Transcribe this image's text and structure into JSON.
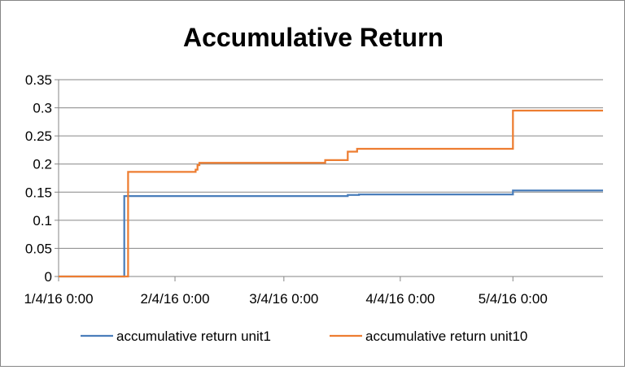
{
  "chart_data": {
    "type": "line",
    "title": "Accumulative Return",
    "xlabel": "",
    "ylabel": "",
    "x_ticks": [
      "1/4/16 0:00",
      "2/4/16 0:00",
      "3/4/16 0:00",
      "4/4/16 0:00",
      "5/4/16 0:00"
    ],
    "x_tick_days": [
      0,
      31,
      60,
      91,
      121
    ],
    "xlim": [
      0,
      145
    ],
    "y_ticks": [
      "0",
      "0.05",
      "0.1",
      "0.15",
      "0.2",
      "0.25",
      "0.3",
      "0.35"
    ],
    "ylim": [
      0,
      0.35
    ],
    "grid": "horizontal",
    "legend_position": "bottom",
    "series": [
      {
        "name": "accumulative return unit1",
        "color": "#4a7ebb",
        "step": true,
        "x": [
          0,
          17.5,
          17.5,
          77,
          77,
          80,
          80,
          121,
          121,
          145
        ],
        "values": [
          0,
          0,
          0.143,
          0.143,
          0.145,
          0.145,
          0.146,
          0.146,
          0.153,
          0.153
        ]
      },
      {
        "name": "accumulative return unit10",
        "color": "#ed7d31",
        "step": true,
        "x": [
          0,
          18.5,
          18.5,
          36.5,
          36.5,
          37,
          37,
          37.5,
          37.5,
          71,
          71,
          77,
          77,
          79.5,
          79.5,
          121,
          121,
          145
        ],
        "values": [
          0,
          0,
          0.186,
          0.186,
          0.19,
          0.19,
          0.198,
          0.198,
          0.202,
          0.202,
          0.207,
          0.207,
          0.222,
          0.222,
          0.227,
          0.227,
          0.295,
          0.295
        ]
      }
    ]
  }
}
